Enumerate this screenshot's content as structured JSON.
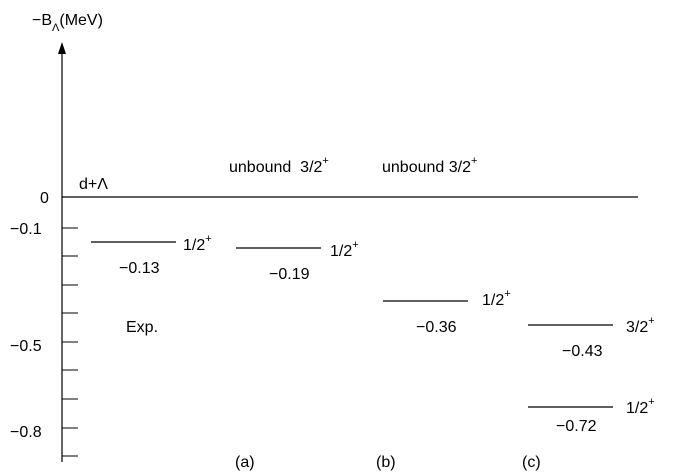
{
  "chart_data": {
    "type": "level-diagram",
    "yaxis": {
      "label_prefix": "−B",
      "label_sub": "Λ",
      "label_suffix": "(MeV)",
      "ticklabels": [
        {
          "text": "0",
          "value": 0
        },
        {
          "text": "−0.1",
          "value": -0.1
        },
        {
          "text": "−0.5",
          "value": -0.5
        },
        {
          "text": "−0.8",
          "value": -0.8
        }
      ]
    },
    "threshold": {
      "label": "d+Λ",
      "value": 0
    },
    "columns": [
      {
        "name": "",
        "sublabel": "Exp.",
        "unbound": "",
        "levels": [
          {
            "value": -0.13,
            "label": "−0.13",
            "jp": "1/2",
            "parity": "+"
          }
        ]
      },
      {
        "name": "(a)",
        "sublabel": "",
        "unbound": "unbound  3/2",
        "unbound_parity": "+",
        "levels": [
          {
            "value": -0.19,
            "label": "−0.19",
            "jp": "1/2",
            "parity": "+"
          }
        ]
      },
      {
        "name": "(b)",
        "sublabel": "",
        "unbound": "unbound 3/2",
        "unbound_parity": "+",
        "levels": [
          {
            "value": -0.36,
            "label": "−0.36",
            "jp": "1/2",
            "parity": "+"
          }
        ]
      },
      {
        "name": "(c)",
        "sublabel": "",
        "unbound": "",
        "levels": [
          {
            "value": -0.43,
            "label": "−0.43",
            "jp": "3/2",
            "parity": "+"
          },
          {
            "value": -0.72,
            "label": "−0.72",
            "jp": "1/2",
            "parity": "+"
          }
        ]
      }
    ]
  }
}
